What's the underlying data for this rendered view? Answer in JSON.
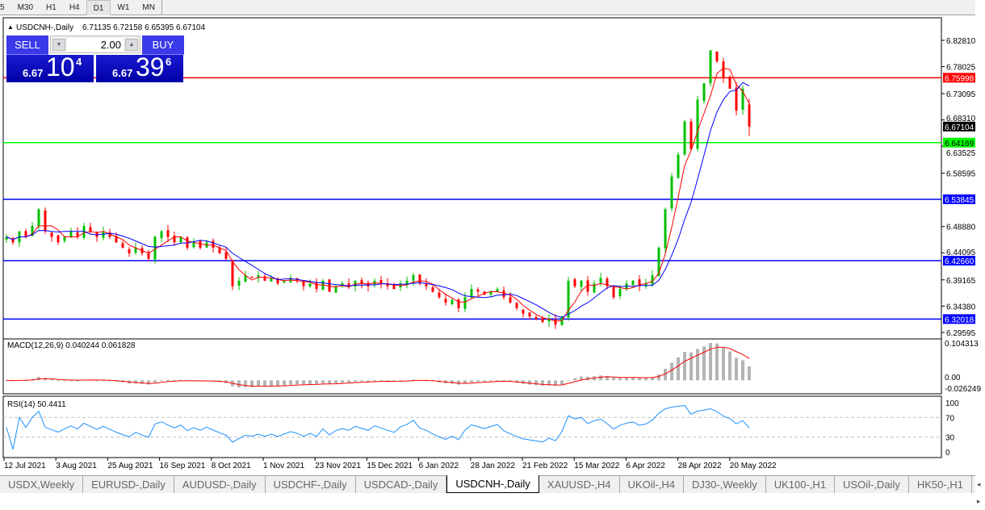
{
  "toolbar": {
    "timeframes": [
      {
        "label": "5"
      },
      {
        "label": "M30"
      },
      {
        "label": "H1"
      },
      {
        "label": "H4"
      },
      {
        "label": "D1",
        "active": true
      },
      {
        "label": "W1"
      },
      {
        "label": "MN"
      }
    ]
  },
  "chart": {
    "header": "USDCNH-,Daily",
    "ohlc": "6.71135 6.72158 6.65395 6.67104",
    "header_icon": "triangle-up-icon"
  },
  "trade_panel": {
    "sell_label": "SELL",
    "buy_label": "BUY",
    "lot": "2.00",
    "sell": {
      "prefix": "6.67",
      "big": "10",
      "sup": "4"
    },
    "buy": {
      "prefix": "6.67",
      "big": "39",
      "sup": "6"
    }
  },
  "colors": {
    "bull": "#00c000",
    "bear": "#ff0000",
    "ma_fast": "#ff0000",
    "ma_slow": "#0000ff",
    "red_line": "#ff0000",
    "green_line": "#00ff00",
    "blue_line": "#0000ff",
    "panel": "#0000c0"
  },
  "chart_data": {
    "type": "candlestick",
    "price_ticks": [
      "6.82810",
      "6.78025",
      "6.73095",
      "6.68310",
      "6.63525",
      "6.58595",
      "6.48880",
      "6.44095",
      "6.39165",
      "6.34380",
      "6.29595"
    ],
    "ylim": [
      6.29595,
      6.8281
    ],
    "closes": [
      6.47,
      6.46,
      6.48,
      6.47,
      6.49,
      6.52,
      6.48,
      6.47,
      6.46,
      6.47,
      6.48,
      6.47,
      6.49,
      6.48,
      6.47,
      6.48,
      6.47,
      6.46,
      6.45,
      6.44,
      6.45,
      6.44,
      6.43,
      6.47,
      6.48,
      6.47,
      6.46,
      6.47,
      6.45,
      6.46,
      6.45,
      6.46,
      6.45,
      6.44,
      6.43,
      6.38,
      6.39,
      6.4,
      6.395,
      6.4,
      6.39,
      6.395,
      6.385,
      6.39,
      6.395,
      6.39,
      6.38,
      6.385,
      6.375,
      6.39,
      6.37,
      6.38,
      6.385,
      6.38,
      6.39,
      6.385,
      6.38,
      6.39,
      6.385,
      6.38,
      6.375,
      6.385,
      6.39,
      6.4,
      6.385,
      6.38,
      6.37,
      6.36,
      6.35,
      6.355,
      6.34,
      6.36,
      6.375,
      6.37,
      6.365,
      6.37,
      6.375,
      6.36,
      6.35,
      6.34,
      6.33,
      6.325,
      6.32,
      6.315,
      6.32,
      6.31,
      6.325,
      6.39,
      6.38,
      6.39,
      6.37,
      6.385,
      6.395,
      6.38,
      6.36,
      6.375,
      6.385,
      6.39,
      6.38,
      6.385,
      6.4,
      6.45,
      6.52,
      6.58,
      6.62,
      6.68,
      6.63,
      6.72,
      6.75,
      6.81,
      6.79,
      6.76,
      6.74,
      6.7,
      6.74,
      6.67104
    ],
    "last_bar": {
      "open": 6.71135,
      "high": 6.72158,
      "low": 6.65395,
      "close": 6.67104
    },
    "hlines": [
      {
        "price": "6.75998",
        "color": "#ff0000"
      },
      {
        "price": "6.64169",
        "color": "#00ff00"
      },
      {
        "price": "6.53845",
        "color": "#0000ff"
      },
      {
        "price": "6.42660",
        "color": "#0000ff"
      },
      {
        "price": "6.32018",
        "color": "#0000ff"
      }
    ],
    "current_price": "6.67104",
    "x_labels": [
      "12 Jul 2021",
      "3 Aug 2021",
      "25 Aug 2021",
      "16 Sep 2021",
      "8 Oct 2021",
      "1 Nov 2021",
      "23 Nov 2021",
      "15 Dec 2021",
      "6 Jan 2022",
      "28 Jan 2022",
      "21 Feb 2022",
      "15 Mar 2022",
      "6 Apr 2022",
      "28 Apr 2022",
      "20 May 2022"
    ],
    "macd": {
      "label": "MACD(12,26,9) 0.040244 0.061828",
      "ticks": [
        "0.104313",
        "0.00",
        "-0.026249"
      ],
      "range": [
        -0.026249,
        0.104313
      ]
    },
    "rsi": {
      "label": "RSI(14) 50.4411",
      "ticks": [
        "100",
        "70",
        "30",
        "0"
      ],
      "levels": [
        70,
        30
      ]
    }
  },
  "tabs": [
    {
      "label": "USDX,Weekly"
    },
    {
      "label": "EURUSD-,Daily"
    },
    {
      "label": "AUDUSD-,Daily"
    },
    {
      "label": "USDCHF-,Daily"
    },
    {
      "label": "USDCAD-,Daily"
    },
    {
      "label": "USDCNH-,Daily",
      "active": true
    },
    {
      "label": "XAUUSD-,H4"
    },
    {
      "label": "UKOil-,H4"
    },
    {
      "label": "DJ30-,Weekly"
    },
    {
      "label": "UK100-,H1"
    },
    {
      "label": "USOil-,Daily"
    },
    {
      "label": "HK50-,H1"
    }
  ],
  "tab_nav": "◂ ▸"
}
